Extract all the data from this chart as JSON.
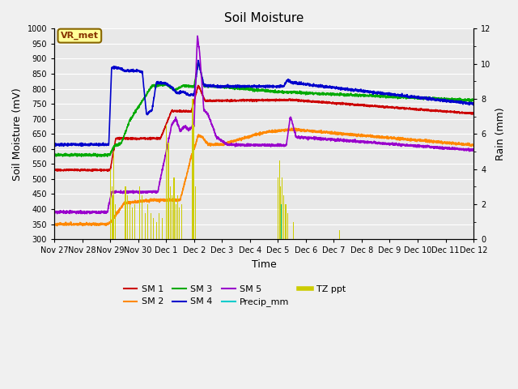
{
  "title": "Soil Moisture",
  "xlabel": "Time",
  "ylabel_left": "Soil Moisture (mV)",
  "ylabel_right": "Rain (mm)",
  "ylim_left": [
    300,
    1000
  ],
  "ylim_right": [
    0,
    12
  ],
  "yticks_left": [
    300,
    350,
    400,
    450,
    500,
    550,
    600,
    650,
    700,
    750,
    800,
    850,
    900,
    950,
    1000
  ],
  "yticks_right": [
    0,
    2,
    4,
    6,
    8,
    10,
    12
  ],
  "xtick_labels": [
    "Nov 27",
    "Nov 28",
    "Nov 29",
    "Nov 30",
    "Dec 1",
    "Dec 2",
    "Dec 3",
    "Dec 4",
    "Dec 5",
    "Dec 6",
    "Dec 7",
    "Dec 8",
    "Dec 9",
    "Dec 10",
    "Dec 11",
    "Dec 12"
  ],
  "colors": {
    "SM1": "#cc0000",
    "SM2": "#ff8800",
    "SM3": "#00aa00",
    "SM4": "#0000cc",
    "SM5": "#9900cc",
    "Precip_mm": "#00cccc",
    "TZ_ppt": "#cccc00",
    "annotation_bg": "#ffff99",
    "annotation_border": "#886600",
    "annotation_text": "#883300"
  },
  "plot_bg": "#e8e8e8",
  "fig_bg": "#f0f0f0",
  "grid_color": "#ffffff",
  "annotation_text": "VR_met"
}
